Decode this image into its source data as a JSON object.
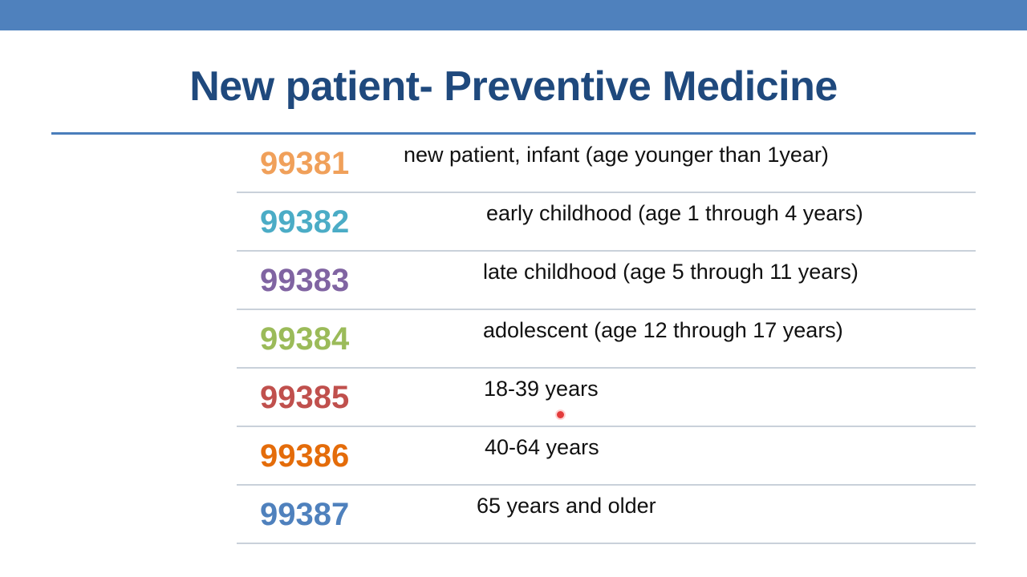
{
  "slide": {
    "title": "New patient- Preventive Medicine",
    "accent_bar_color": "#4f81bd",
    "title_color": "#1f497d"
  },
  "rows": [
    {
      "code": "99381",
      "description": "new patient, infant (age younger than 1year)",
      "code_color": "#f0a05a"
    },
    {
      "code": "99382",
      "description": "early childhood (age 1 through 4 years)",
      "code_color": "#4bacc6"
    },
    {
      "code": "99383",
      "description": "late childhood (age 5 through 11 years)",
      "code_color": "#8064a2"
    },
    {
      "code": "99384",
      "description": "adolescent (age 12 through 17 years)",
      "code_color": "#9bbb59"
    },
    {
      "code": "99385",
      "description": "18-39 years",
      "code_color": "#c0504d"
    },
    {
      "code": "99386",
      "description": "40-64 years",
      "code_color": "#e46c0a"
    },
    {
      "code": "99387",
      "description": "65 years and older",
      "code_color": "#4f81bd"
    }
  ]
}
